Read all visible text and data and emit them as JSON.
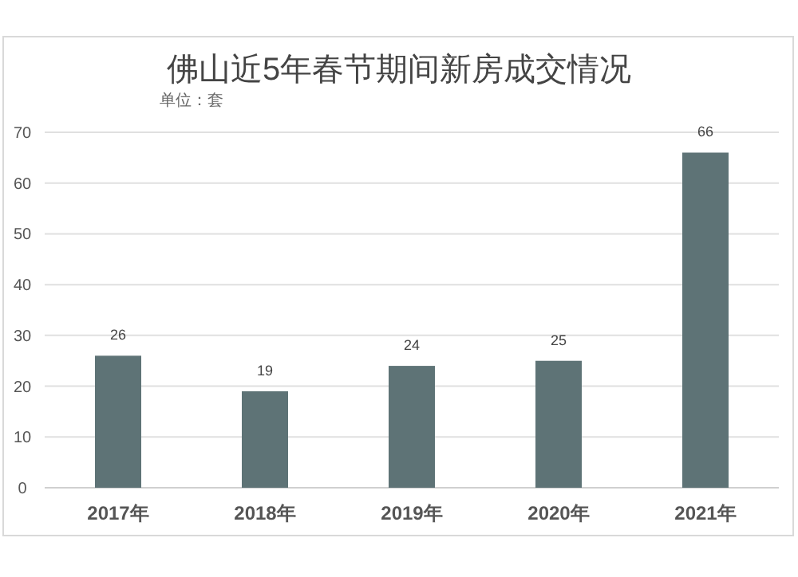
{
  "chart_data": {
    "type": "bar",
    "title": "佛山近5年春节期间新房成交情况",
    "subtitle": "单位：套",
    "categories": [
      "2017年",
      "2018年",
      "2019年",
      "2020年",
      "2021年"
    ],
    "values": [
      26,
      19,
      24,
      25,
      66
    ],
    "color": "#5e7376",
    "ylim": [
      0,
      70
    ],
    "yticks": [
      0,
      10,
      20,
      30,
      40,
      50,
      60,
      70
    ],
    "grid": "y",
    "data_labels": true
  }
}
